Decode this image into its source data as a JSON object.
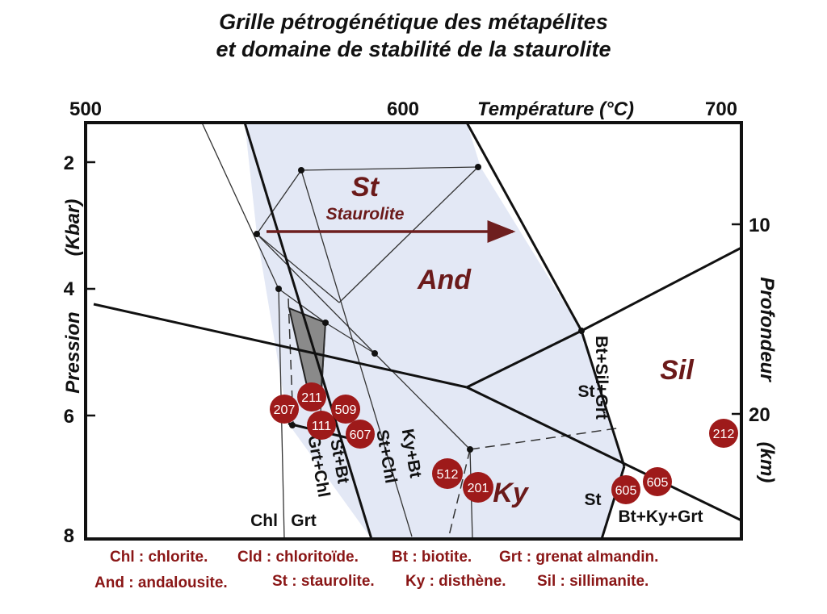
{
  "title": {
    "line1": "Grille pétrogénétique des métapélites",
    "line2": "et domaine de stabilité de la staurolite"
  },
  "axes": {
    "temperature_label": "Température (°C)",
    "temperature_ticks": [
      "500",
      "600",
      "700"
    ],
    "pressure_label": "Pression",
    "pressure_unit": "(Kbar)",
    "pressure_ticks": [
      "2",
      "4",
      "6",
      "8"
    ],
    "depth_label": "Profondeur",
    "depth_unit": "(km)",
    "depth_ticks": [
      "10",
      "20"
    ]
  },
  "fields": {
    "st": "St",
    "staurolite": "Staurolite",
    "and": "And",
    "sil": "Sil",
    "ky": "Ky"
  },
  "reactions": {
    "bt_sil_grt": "Bt+Sil+Grt",
    "st_right": "St",
    "st_bt": "St+Bt",
    "grt_chl": "Grt+Chl",
    "st_chl": "St+Chl",
    "ky_bt": "Ky+Bt",
    "chl": "Chl",
    "grt": "Grt",
    "st_bottom": "St",
    "bt_ky_grt": "Bt+Ky+Grt"
  },
  "samples": [
    "207",
    "211",
    "509",
    "111",
    "607",
    "512",
    "201",
    "605",
    "605",
    "212"
  ],
  "legend": {
    "line1": [
      "Chl : chlorite.",
      "Cld : chloritoïde.",
      "Bt : biotite.",
      "Grt : grenat almandin."
    ],
    "line2": [
      "And : andalousite.",
      "St : staurolite.",
      "Ky : disthène.",
      "Sil : sillimanite."
    ]
  },
  "colors": {
    "field_fill": "#e3e8f5",
    "cld_fill": "#8a8a8a",
    "sample_fill": "#9e1a1a",
    "arrow": "#6e1f1f",
    "field_label": "#6b1a1a",
    "legend_text": "#8a1616"
  }
}
